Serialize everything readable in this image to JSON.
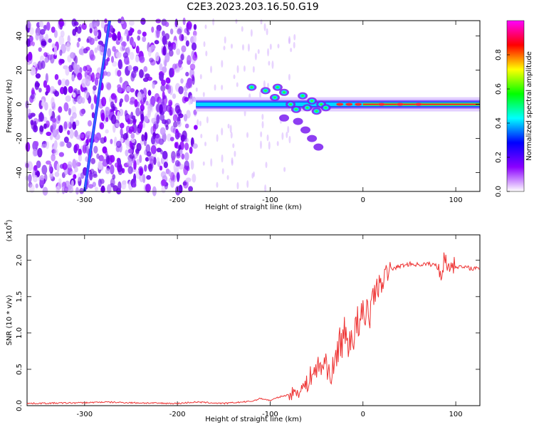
{
  "title": "C2E3.2023.203.16.50.G19",
  "chart_data": [
    {
      "type": "heatmap",
      "xlabel": "Height of straight line (km)",
      "ylabel": "Frequency (Hz)",
      "xlim": [
        -362,
        126
      ],
      "ylim": [
        -51,
        49
      ],
      "x_ticks": [
        -300,
        -200,
        -100,
        0,
        100
      ],
      "y_ticks": [
        -40,
        -20,
        0,
        20,
        40
      ],
      "colorbar": {
        "label": "Normalized spectral amplitude",
        "range": [
          0,
          1
        ],
        "ticks": [
          0.0,
          0.2,
          0.4,
          0.6,
          0.8
        ],
        "colormap": [
          "#ffffff",
          "#8b00ff",
          "#0000ff",
          "#00ffff",
          "#00ff00",
          "#ffff00",
          "#ff0000",
          "#ff00ff"
        ]
      },
      "features": {
        "noise_region_x": [
          -362,
          -180
        ],
        "diagonal_line": {
          "x_start": -300,
          "y_start": -51,
          "x_end": -273,
          "y_end": 49
        },
        "main_band": {
          "x_range": [
            -180,
            126
          ],
          "frequency": 0
        },
        "secondary_streak": {
          "x_start": -120,
          "y_start": 10,
          "x_end": -90,
          "y_end": 10
        }
      }
    },
    {
      "type": "line",
      "xlabel": "Height of straight line (km)",
      "ylabel": "SNR (10 * v/v)",
      "y_multiplier_label": "(x10",
      "y_multiplier_exp": "4",
      "xlim": [
        -362,
        126
      ],
      "ylim": [
        0,
        2.35
      ],
      "x_ticks": [
        -300,
        -200,
        -100,
        0,
        100
      ],
      "y_ticks": [
        0.0,
        0.5,
        1.0,
        1.5,
        2.0
      ],
      "series": [
        {
          "color": "#ee3333",
          "x": [
            -362,
            -300,
            -280,
            -250,
            -200,
            -180,
            -150,
            -120,
            -110,
            -100,
            -90,
            -80,
            -70,
            -60,
            -55,
            -50,
            -45,
            -40,
            -35,
            -30,
            -25,
            -20,
            -15,
            -10,
            -5,
            0,
            5,
            10,
            15,
            20,
            25,
            30,
            40,
            50,
            60,
            70,
            80,
            85,
            88,
            90,
            95,
            100,
            110,
            126
          ],
          "y": [
            0.03,
            0.04,
            0.05,
            0.04,
            0.03,
            0.05,
            0.03,
            0.06,
            0.1,
            0.07,
            0.12,
            0.15,
            0.2,
            0.3,
            0.45,
            0.5,
            0.55,
            0.6,
            0.4,
            0.6,
            0.9,
            0.95,
            0.9,
            1.0,
            1.1,
            1.15,
            1.3,
            1.5,
            1.6,
            1.7,
            1.8,
            1.88,
            1.92,
            1.95,
            1.94,
            1.95,
            1.93,
            1.8,
            2.1,
            1.9,
            1.95,
            1.92,
            1.9,
            1.88
          ]
        }
      ]
    }
  ]
}
